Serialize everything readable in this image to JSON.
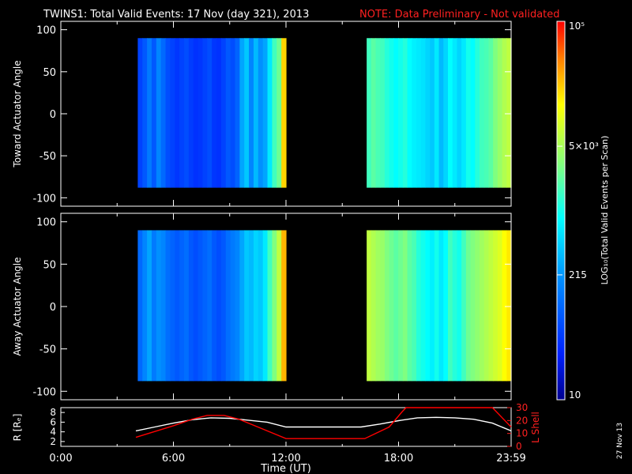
{
  "header": {
    "title": "TWINS1: Total Valid Events: 17 Nov (day 321), 2013",
    "note": "NOTE: Data Preliminary - Not validated"
  },
  "footer": {
    "stamp": "27 Nov 13"
  },
  "colors": {
    "background": "#000000",
    "axes": "#ffffff",
    "note": "#ff0000",
    "r_line": "#ffffff",
    "lshell_line": "#ff0000"
  },
  "chart_data": [
    {
      "type": "heatmap",
      "panel": "toward",
      "ylabel": "Toward Actuator Angle",
      "xlim": [
        0,
        24
      ],
      "ylim": [
        -110,
        110
      ],
      "yticks": [
        "100",
        "50",
        "0",
        "-50",
        "-100"
      ],
      "yticks_values": [
        100,
        50,
        0,
        -50,
        -100
      ],
      "xticks": [],
      "angle_range": [
        -88,
        90
      ],
      "blocks": [
        {
          "start": 4.1,
          "end": 12.0,
          "levels": [
            0.18,
            0.22,
            0.28,
            0.22,
            0.3,
            0.25,
            0.2,
            0.18,
            0.16,
            0.18,
            0.2,
            0.17,
            0.15,
            0.16,
            0.18,
            0.2,
            0.16,
            0.15,
            0.18,
            0.22,
            0.2,
            0.24,
            0.35,
            0.4,
            0.3,
            0.38,
            0.32,
            0.35,
            0.45,
            0.55,
            0.6,
            0.82
          ]
        },
        {
          "start": 16.3,
          "end": 24.0,
          "levels": [
            0.55,
            0.58,
            0.56,
            0.55,
            0.52,
            0.5,
            0.48,
            0.5,
            0.52,
            0.48,
            0.46,
            0.45,
            0.44,
            0.42,
            0.4,
            0.45,
            0.38,
            0.42,
            0.48,
            0.45,
            0.42,
            0.45,
            0.5,
            0.48,
            0.52,
            0.55,
            0.56,
            0.58,
            0.62,
            0.65,
            0.68,
            0.7
          ]
        }
      ]
    },
    {
      "type": "heatmap",
      "panel": "away",
      "ylabel": "Away Actuator Angle",
      "xlim": [
        0,
        24
      ],
      "ylim": [
        -110,
        110
      ],
      "yticks": [
        "100",
        "50",
        "0",
        "-50",
        "-100"
      ],
      "yticks_values": [
        100,
        50,
        0,
        -50,
        -100
      ],
      "xticks": [],
      "angle_range": [
        -88,
        90
      ],
      "blocks": [
        {
          "start": 4.1,
          "end": 12.0,
          "levels": [
            0.25,
            0.3,
            0.35,
            0.28,
            0.32,
            0.3,
            0.26,
            0.24,
            0.22,
            0.24,
            0.26,
            0.22,
            0.2,
            0.22,
            0.24,
            0.26,
            0.22,
            0.2,
            0.22,
            0.26,
            0.28,
            0.3,
            0.35,
            0.4,
            0.38,
            0.42,
            0.4,
            0.45,
            0.55,
            0.62,
            0.7,
            0.85
          ]
        },
        {
          "start": 16.3,
          "end": 24.0,
          "levels": [
            0.7,
            0.68,
            0.66,
            0.65,
            0.62,
            0.6,
            0.58,
            0.6,
            0.62,
            0.58,
            0.56,
            0.52,
            0.5,
            0.48,
            0.46,
            0.5,
            0.45,
            0.48,
            0.55,
            0.52,
            0.5,
            0.55,
            0.6,
            0.62,
            0.64,
            0.66,
            0.68,
            0.7,
            0.72,
            0.74,
            0.78,
            0.8
          ]
        }
      ]
    },
    {
      "type": "line",
      "panel": "orbit",
      "xlabel": "Time (UT)",
      "ylabel_left": "R [Rₑ]",
      "ylabel_right": "L Shell",
      "xlim": [
        0,
        24
      ],
      "ylim_left": [
        1,
        9
      ],
      "ylim_right": [
        0,
        30
      ],
      "yticks_left": [
        "8",
        "6",
        "4",
        "2"
      ],
      "yticks_left_values": [
        8,
        6,
        4,
        2
      ],
      "yticks_right": [
        "30",
        "20",
        "10",
        "0"
      ],
      "yticks_right_values": [
        30,
        20,
        10,
        0
      ],
      "xticks": [
        "0:00",
        "6:00",
        "12:00",
        "18:00",
        "23:59"
      ],
      "xticks_values": [
        0,
        6,
        12,
        18,
        24
      ],
      "series": [
        {
          "axis": "left",
          "x": [
            4.0,
            5.0,
            6.0,
            7.0,
            8.0,
            9.0,
            10.0,
            11.0,
            12.0,
            14.0,
            16.0,
            17.0,
            18.0,
            19.0,
            20.0,
            21.0,
            22.0,
            23.0,
            24.0
          ],
          "values": [
            4.2,
            5.0,
            5.8,
            6.5,
            6.9,
            6.8,
            6.4,
            6.0,
            5.0,
            5.0,
            5.0,
            5.6,
            6.3,
            6.9,
            7.0,
            6.9,
            6.6,
            5.8,
            4.2
          ]
        },
        {
          "axis": "right",
          "x": [
            4.0,
            6.0,
            7.0,
            7.8,
            8.0,
            8.7,
            9.5,
            10.5,
            12.0,
            14.0,
            16.2,
            17.5,
            18.2,
            18.4,
            23.0,
            24.0
          ],
          "values": [
            7,
            16,
            21,
            24,
            24,
            24,
            21,
            15,
            6,
            6,
            6,
            15,
            27,
            30,
            30,
            15
          ]
        }
      ]
    },
    {
      "type": "heatmap",
      "panel": "colorbar",
      "ylabel": "LOG₁₀(Total Valid Events per Scan)",
      "tick_labels": [
        "10⁵",
        "5×10³",
        "215",
        "10"
      ],
      "tick_positions": [
        1.0,
        0.67,
        0.33,
        0.0
      ]
    }
  ]
}
